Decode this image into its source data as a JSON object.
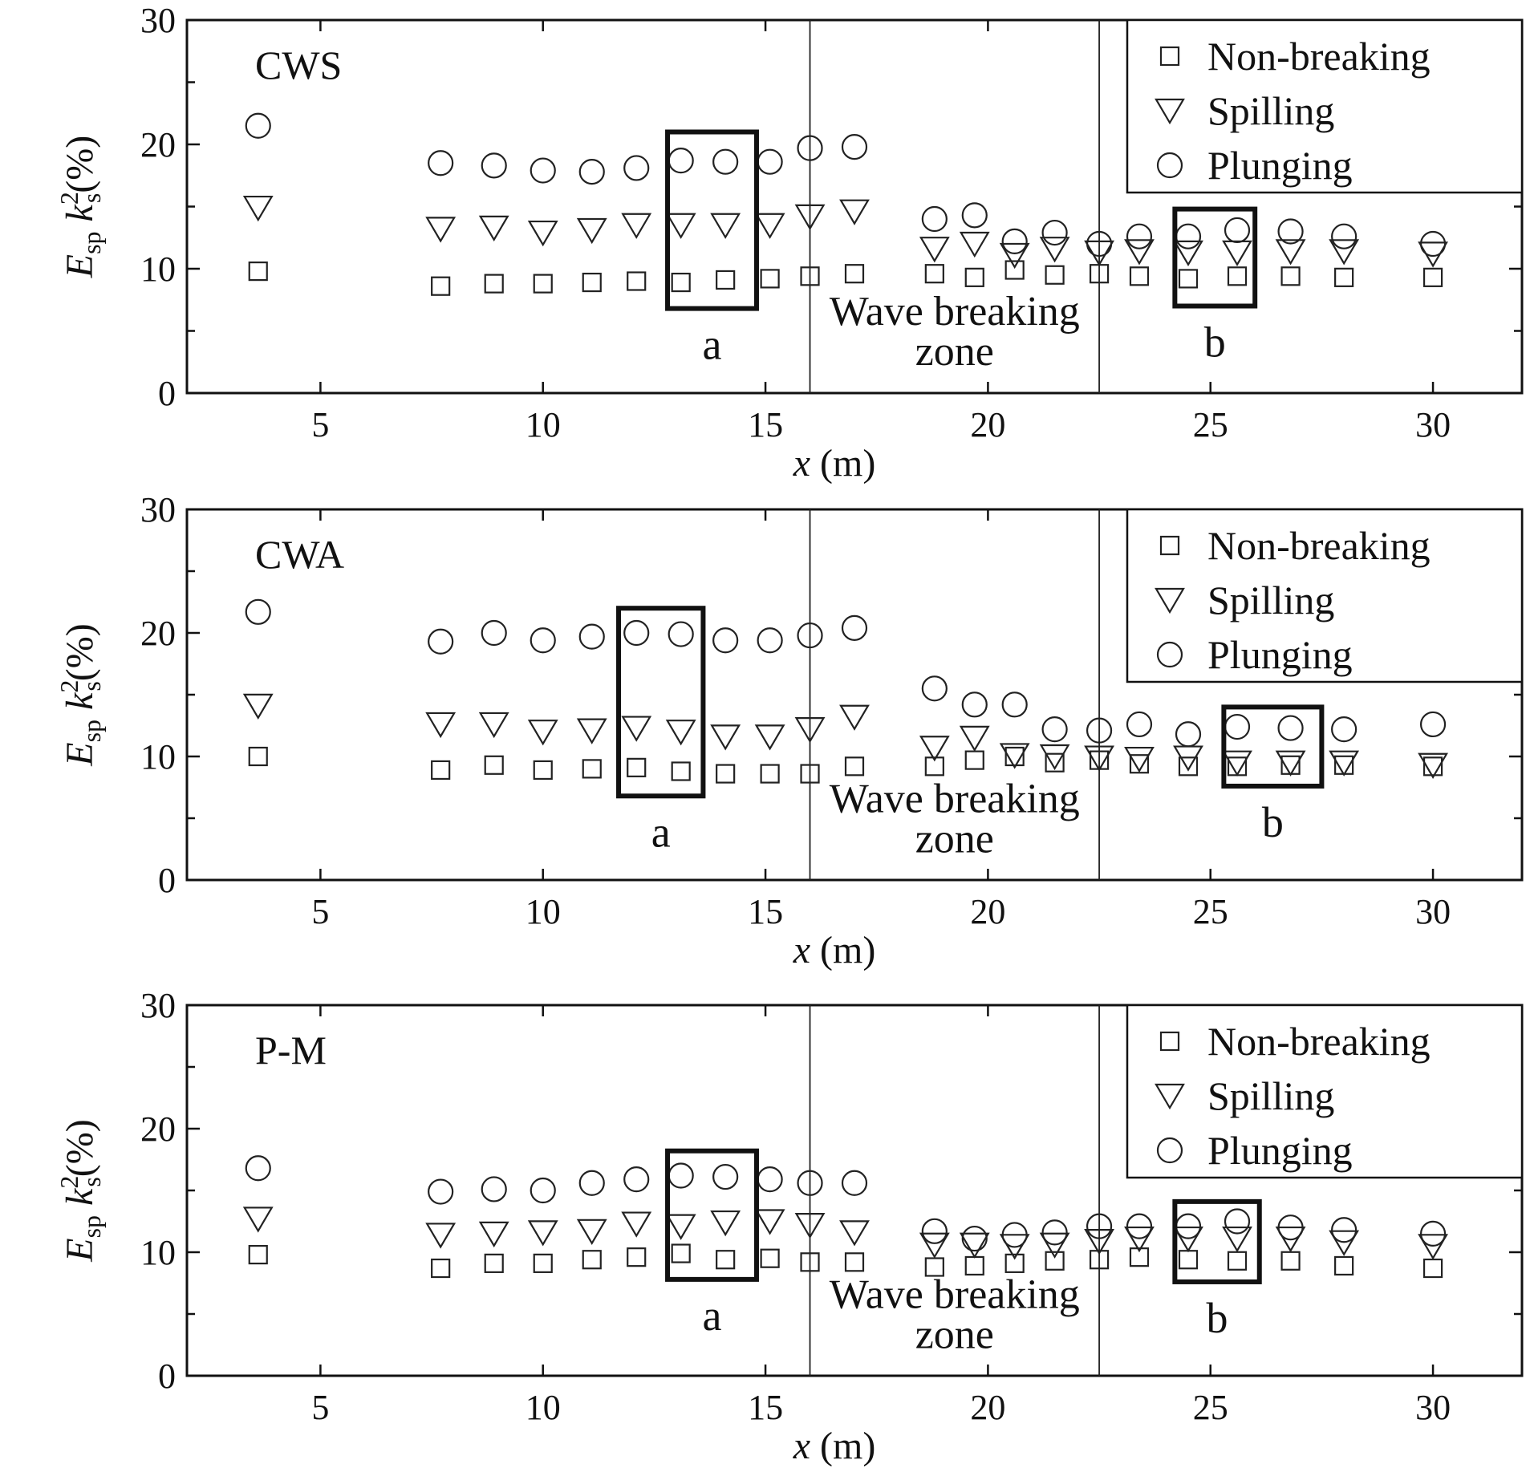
{
  "chart_data": [
    {
      "type": "scatter",
      "panel_label": "CWS",
      "xlabel": "x (m)",
      "ylabel": "E_sp k_s^2 (%)",
      "xlim": [
        2,
        32
      ],
      "ylim": [
        0,
        30
      ],
      "xticks": [
        5,
        10,
        15,
        20,
        25,
        30
      ],
      "yticks": [
        0,
        10,
        20,
        30
      ],
      "breaking_zone": {
        "x_start": 16.0,
        "x_end": 22.5,
        "label_line1": "Wave breaking",
        "label_line2": "zone"
      },
      "highlight_boxes": [
        {
          "label": "a",
          "x0": 12.8,
          "x1": 14.8,
          "y0": 6.8,
          "y1": 21.0
        },
        {
          "label": "b",
          "x0": 24.2,
          "x1": 26.0,
          "y0": 7.0,
          "y1": 14.8
        }
      ],
      "legend": {
        "position": "top-right",
        "entries": [
          "Non-breaking",
          "Spilling",
          "Plunging"
        ]
      },
      "series": [
        {
          "name": "Non-breaking",
          "marker": "square",
          "x": [
            3.6,
            7.7,
            8.9,
            10.0,
            11.1,
            12.1,
            13.1,
            14.1,
            15.1,
            16.0,
            17.0,
            18.8,
            19.7,
            20.6,
            21.5,
            22.5,
            23.4,
            24.5,
            25.6,
            26.8,
            28.0,
            30.0
          ],
          "y": [
            9.8,
            8.6,
            8.8,
            8.8,
            8.9,
            9.0,
            8.9,
            9.1,
            9.2,
            9.4,
            9.6,
            9.6,
            9.3,
            9.9,
            9.5,
            9.6,
            9.4,
            9.2,
            9.4,
            9.4,
            9.3,
            9.3
          ]
        },
        {
          "name": "Spilling",
          "marker": "triangle-down",
          "x": [
            3.6,
            7.7,
            8.9,
            10.0,
            11.1,
            12.1,
            13.1,
            14.1,
            15.1,
            16.0,
            17.0,
            18.8,
            19.7,
            20.6,
            21.5,
            22.5,
            23.4,
            24.5,
            25.6,
            26.8,
            28.0,
            30.0
          ],
          "y": [
            14.9,
            13.2,
            13.3,
            12.9,
            13.1,
            13.5,
            13.5,
            13.5,
            13.5,
            14.2,
            14.6,
            11.6,
            12.0,
            11.1,
            11.6,
            11.3,
            11.4,
            11.3,
            11.3,
            11.4,
            11.4,
            11.2
          ]
        },
        {
          "name": "Plunging",
          "marker": "circle",
          "x": [
            3.6,
            7.7,
            8.9,
            10.0,
            11.1,
            12.1,
            13.1,
            14.1,
            15.1,
            16.0,
            17.0,
            18.8,
            19.7,
            20.6,
            21.5,
            22.5,
            23.4,
            24.5,
            25.6,
            26.8,
            28.0,
            30.0
          ],
          "y": [
            21.5,
            18.5,
            18.3,
            17.9,
            17.8,
            18.1,
            18.7,
            18.6,
            18.6,
            19.7,
            19.8,
            14.0,
            14.3,
            12.2,
            12.9,
            12.0,
            12.6,
            12.6,
            13.1,
            13.0,
            12.6,
            12.0
          ]
        }
      ]
    },
    {
      "type": "scatter",
      "panel_label": "CWA",
      "xlabel": "x (m)",
      "ylabel": "E_sp k_s^2 (%)",
      "xlim": [
        2,
        32
      ],
      "ylim": [
        0,
        30
      ],
      "xticks": [
        5,
        10,
        15,
        20,
        25,
        30
      ],
      "yticks": [
        0,
        10,
        20,
        30
      ],
      "breaking_zone": {
        "x_start": 16.0,
        "x_end": 22.5,
        "label_line1": "Wave breaking",
        "label_line2": "zone"
      },
      "highlight_boxes": [
        {
          "label": "a",
          "x0": 11.7,
          "x1": 13.6,
          "y0": 6.8,
          "y1": 22.0
        },
        {
          "label": "b",
          "x0": 25.3,
          "x1": 27.5,
          "y0": 7.6,
          "y1": 14.0
        }
      ],
      "legend": {
        "position": "top-right",
        "entries": [
          "Non-breaking",
          "Spilling",
          "Plunging"
        ]
      },
      "series": [
        {
          "name": "Non-breaking",
          "marker": "square",
          "x": [
            3.6,
            7.7,
            8.9,
            10.0,
            11.1,
            12.1,
            13.1,
            14.1,
            15.1,
            16.0,
            17.0,
            18.8,
            19.7,
            20.6,
            21.5,
            22.5,
            23.4,
            24.5,
            25.6,
            26.8,
            28.0,
            30.0
          ],
          "y": [
            10.0,
            8.9,
            9.3,
            8.9,
            9.0,
            9.1,
            8.8,
            8.6,
            8.6,
            8.6,
            9.2,
            9.2,
            9.7,
            10.0,
            9.5,
            9.7,
            9.4,
            9.2,
            9.2,
            9.3,
            9.3,
            9.2
          ]
        },
        {
          "name": "Spilling",
          "marker": "triangle-down",
          "x": [
            3.6,
            7.7,
            8.9,
            10.0,
            11.1,
            12.1,
            13.1,
            14.1,
            15.1,
            16.0,
            17.0,
            18.8,
            19.7,
            20.6,
            21.5,
            22.5,
            23.4,
            24.5,
            25.6,
            26.8,
            28.0,
            30.0
          ],
          "y": [
            14.1,
            12.6,
            12.6,
            12.0,
            12.1,
            12.3,
            12.0,
            11.6,
            11.6,
            12.2,
            13.2,
            10.7,
            11.5,
            10.1,
            10.0,
            9.9,
            9.8,
            9.9,
            9.5,
            9.5,
            9.5,
            9.3
          ]
        },
        {
          "name": "Plunging",
          "marker": "circle",
          "x": [
            3.6,
            7.7,
            8.9,
            10.0,
            11.1,
            12.1,
            13.1,
            14.1,
            15.1,
            16.0,
            17.0,
            18.8,
            19.7,
            20.6,
            21.5,
            22.5,
            23.4,
            24.5,
            25.6,
            26.8,
            28.0,
            30.0
          ],
          "y": [
            21.7,
            19.3,
            20.0,
            19.4,
            19.7,
            20.0,
            19.9,
            19.4,
            19.4,
            19.8,
            20.4,
            15.5,
            14.2,
            14.2,
            12.2,
            12.1,
            12.6,
            11.8,
            12.4,
            12.3,
            12.2,
            12.6
          ]
        }
      ]
    },
    {
      "type": "scatter",
      "panel_label": "P-M",
      "xlabel": "x (m)",
      "ylabel": "E_sp k_s^2 (%)",
      "xlim": [
        2,
        32
      ],
      "ylim": [
        0,
        30
      ],
      "xticks": [
        5,
        10,
        15,
        20,
        25,
        30
      ],
      "yticks": [
        0,
        10,
        20,
        30
      ],
      "breaking_zone": {
        "x_start": 16.0,
        "x_end": 22.5,
        "label_line1": "Wave breaking",
        "label_line2": "zone"
      },
      "highlight_boxes": [
        {
          "label": "a",
          "x0": 12.8,
          "x1": 14.8,
          "y0": 7.8,
          "y1": 18.2
        },
        {
          "label": "b",
          "x0": 24.2,
          "x1": 26.1,
          "y0": 7.6,
          "y1": 14.1
        }
      ],
      "legend": {
        "position": "top-right",
        "entries": [
          "Non-breaking",
          "Spilling",
          "Plunging"
        ]
      },
      "series": [
        {
          "name": "Non-breaking",
          "marker": "square",
          "x": [
            3.6,
            7.7,
            8.9,
            10.0,
            11.1,
            12.1,
            13.1,
            14.1,
            15.1,
            16.0,
            17.0,
            18.8,
            19.7,
            20.6,
            21.5,
            22.5,
            23.4,
            24.5,
            25.6,
            26.8,
            28.0,
            30.0
          ],
          "y": [
            9.8,
            8.7,
            9.1,
            9.1,
            9.4,
            9.6,
            9.9,
            9.4,
            9.5,
            9.2,
            9.2,
            8.8,
            8.9,
            9.1,
            9.3,
            9.4,
            9.6,
            9.4,
            9.3,
            9.3,
            8.9,
            8.7
          ]
        },
        {
          "name": "Spilling",
          "marker": "triangle-down",
          "x": [
            3.6,
            7.7,
            8.9,
            10.0,
            11.1,
            12.1,
            13.1,
            14.1,
            15.1,
            16.0,
            17.0,
            18.8,
            19.7,
            20.6,
            21.5,
            22.5,
            23.4,
            24.5,
            25.6,
            26.8,
            28.0,
            30.0
          ],
          "y": [
            12.7,
            11.4,
            11.5,
            11.6,
            11.7,
            12.3,
            12.1,
            12.4,
            12.5,
            12.2,
            11.6,
            10.6,
            10.6,
            10.5,
            10.6,
            10.9,
            11.1,
            11.1,
            11.1,
            11.1,
            10.8,
            10.5
          ]
        },
        {
          "name": "Plunging",
          "marker": "circle",
          "x": [
            3.6,
            7.7,
            8.9,
            10.0,
            11.1,
            12.1,
            13.1,
            14.1,
            15.1,
            16.0,
            17.0,
            18.8,
            19.7,
            20.6,
            21.5,
            22.5,
            23.4,
            24.5,
            25.6,
            26.8,
            28.0,
            30.0
          ],
          "y": [
            16.8,
            14.9,
            15.1,
            15.0,
            15.6,
            15.9,
            16.2,
            16.1,
            15.9,
            15.6,
            15.6,
            11.7,
            11.1,
            11.4,
            11.6,
            12.1,
            12.1,
            12.1,
            12.5,
            12.0,
            11.8,
            11.5
          ]
        }
      ]
    }
  ]
}
